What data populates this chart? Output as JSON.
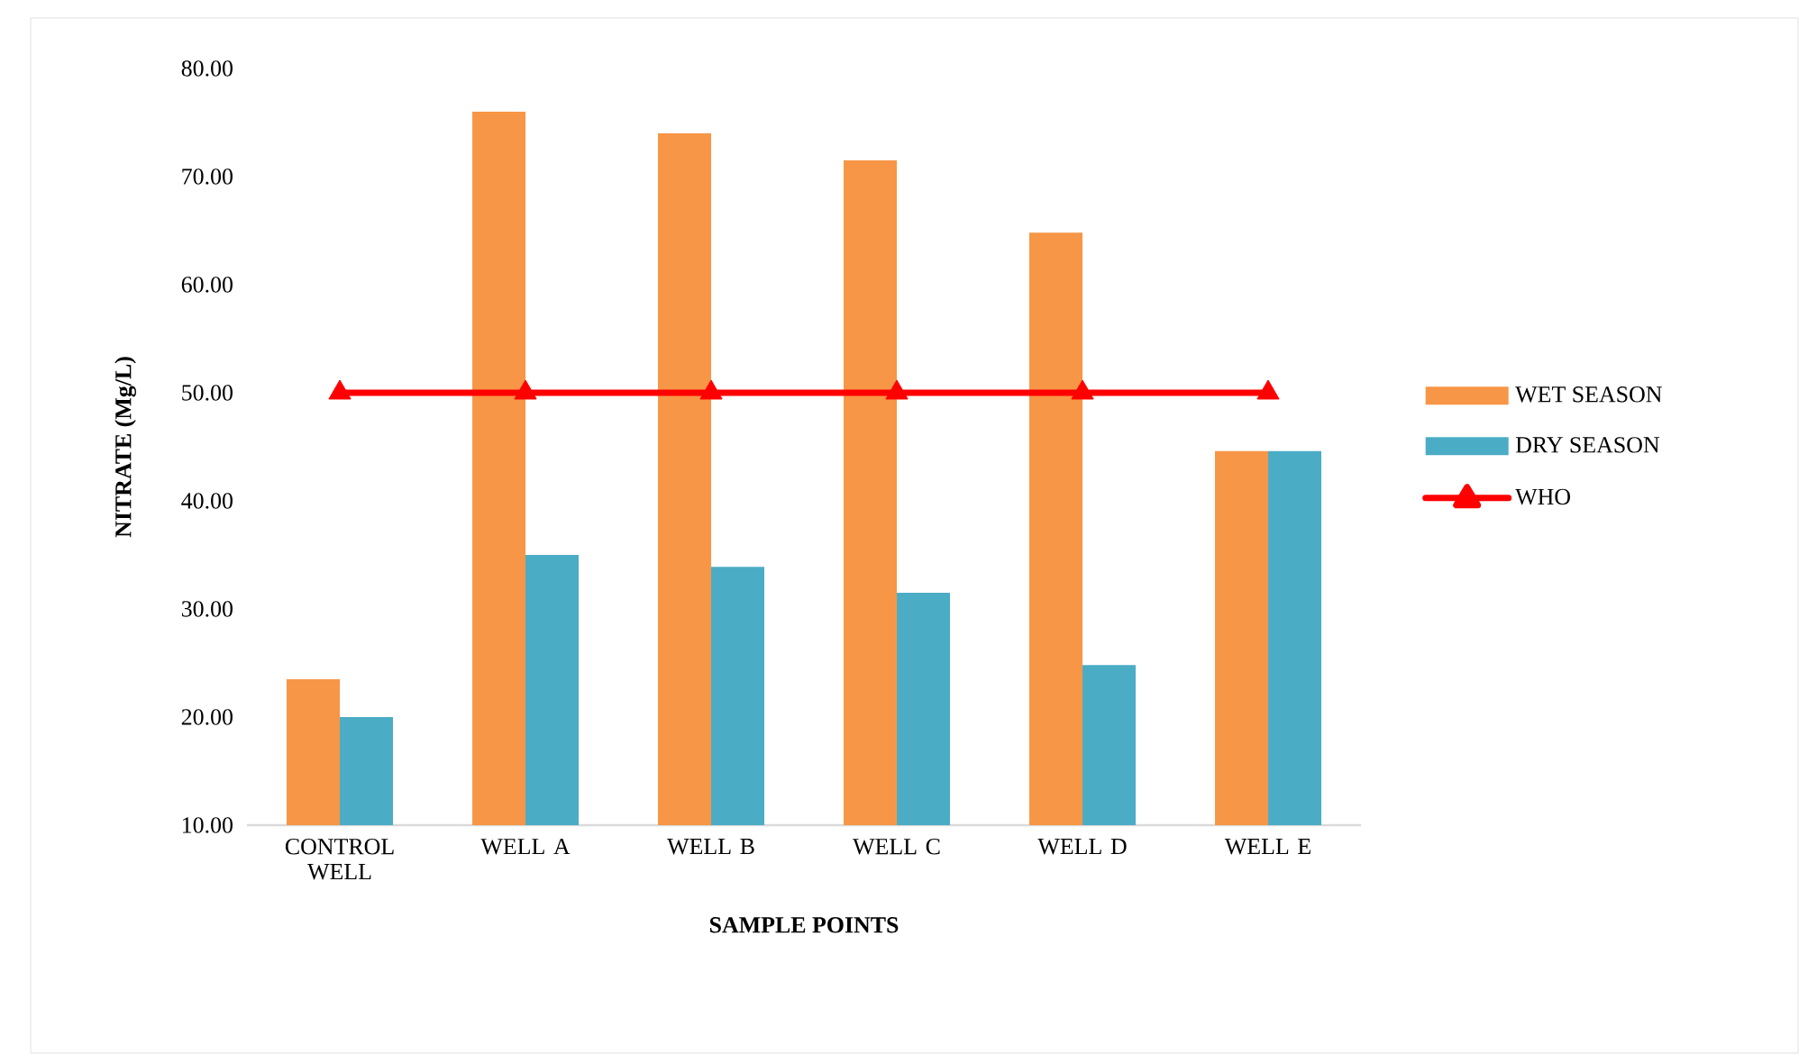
{
  "chart_data": {
    "type": "bar",
    "xlabel": "SAMPLE POINTS",
    "ylabel": "NITRATE (Mg/L)",
    "categories": [
      "CONTROL WELL",
      "WELL A",
      "WELL B",
      "WELL C",
      "WELL D",
      "WELL E"
    ],
    "series": [
      {
        "name": "WET SEASON",
        "color": "#f79646",
        "values": [
          23.5,
          76.0,
          74.0,
          71.5,
          64.8,
          44.6
        ]
      },
      {
        "name": "DRY SEASON",
        "color": "#4bacc6",
        "values": [
          20.0,
          35.0,
          33.9,
          31.5,
          24.8,
          44.6
        ]
      },
      {
        "name": "WHO",
        "type": "line",
        "color": "#ff0000",
        "marker": "triangle",
        "values": [
          50,
          50,
          50,
          50,
          50,
          50
        ]
      }
    ],
    "ylim": [
      10,
      80
    ],
    "yticks": [
      {
        "value": 10,
        "label": "10.00"
      },
      {
        "value": 20,
        "label": "20.00"
      },
      {
        "value": 30,
        "label": "30.00"
      },
      {
        "value": 40,
        "label": "40.00"
      },
      {
        "value": 50,
        "label": "50.00"
      },
      {
        "value": 60,
        "label": "60.00"
      },
      {
        "value": 70,
        "label": "70.00"
      },
      {
        "value": 80,
        "label": "80.00"
      }
    ],
    "legend": "right"
  }
}
